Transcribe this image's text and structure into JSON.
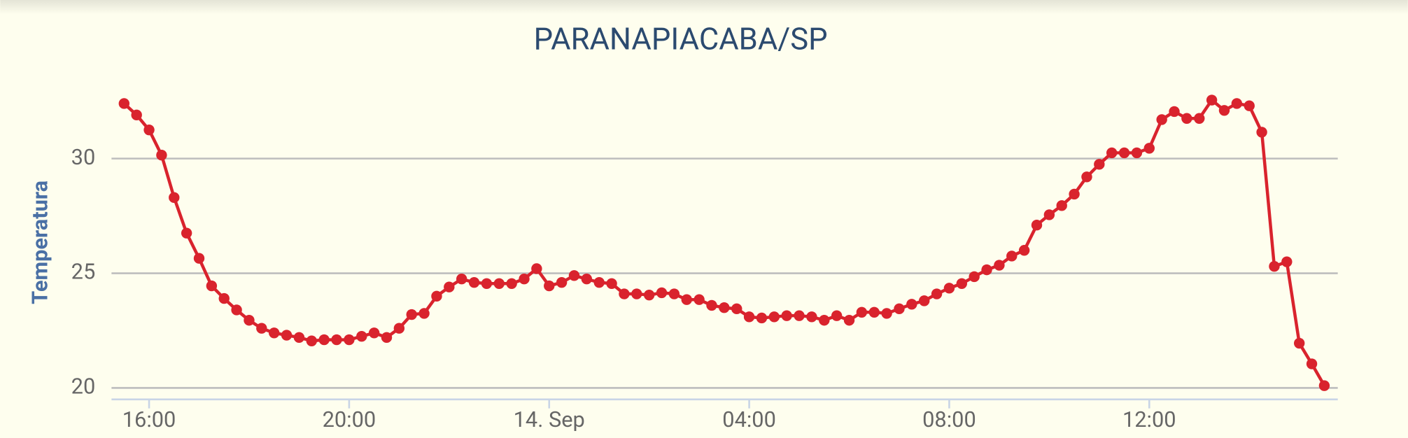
{
  "chart_data": {
    "type": "line",
    "title": "PARANAPIACABA/SP",
    "y_label": "Temperatura",
    "x": [
      "15:30",
      "15:45",
      "16:00",
      "16:15",
      "16:30",
      "16:45",
      "17:00",
      "17:15",
      "17:30",
      "17:45",
      "18:00",
      "18:15",
      "18:30",
      "18:45",
      "19:00",
      "19:15",
      "19:30",
      "19:45",
      "20:00",
      "20:15",
      "20:30",
      "20:45",
      "21:00",
      "21:15",
      "21:30",
      "21:45",
      "22:00",
      "22:15",
      "22:30",
      "22:45",
      "23:00",
      "23:15",
      "23:30",
      "23:45",
      "00:00",
      "00:15",
      "00:30",
      "00:45",
      "01:00",
      "01:15",
      "01:30",
      "01:45",
      "02:00",
      "02:15",
      "02:30",
      "02:45",
      "03:00",
      "03:15",
      "03:30",
      "03:45",
      "04:00",
      "04:15",
      "04:30",
      "04:45",
      "05:00",
      "05:15",
      "05:30",
      "05:45",
      "06:00",
      "06:15",
      "06:30",
      "06:45",
      "07:00",
      "07:15",
      "07:30",
      "07:45",
      "08:00",
      "08:15",
      "08:30",
      "08:45",
      "09:00",
      "09:15",
      "09:30",
      "09:45",
      "10:00",
      "10:15",
      "10:30",
      "10:45",
      "11:00",
      "11:15",
      "11:30",
      "11:45",
      "12:00",
      "12:15",
      "12:30",
      "12:45",
      "13:00",
      "13:15",
      "13:30",
      "13:45",
      "14:00",
      "14:15",
      "14:30",
      "14:45",
      "15:00",
      "15:15",
      "15:30"
    ],
    "series": [
      {
        "name": "Temperatura",
        "color": "#d9232d",
        "values": [
          32.4,
          31.9,
          31.25,
          30.15,
          28.3,
          26.75,
          25.65,
          24.45,
          23.9,
          23.4,
          22.95,
          22.6,
          22.4,
          22.3,
          22.2,
          22.05,
          22.1,
          22.1,
          22.1,
          22.25,
          22.4,
          22.2,
          22.6,
          23.2,
          23.25,
          24.0,
          24.4,
          24.75,
          24.6,
          24.55,
          24.55,
          24.55,
          24.75,
          25.2,
          24.45,
          24.6,
          24.9,
          24.75,
          24.6,
          24.55,
          24.1,
          24.1,
          24.05,
          24.15,
          24.1,
          23.85,
          23.85,
          23.6,
          23.5,
          23.45,
          23.1,
          23.05,
          23.1,
          23.15,
          23.15,
          23.1,
          22.95,
          23.15,
          22.95,
          23.3,
          23.3,
          23.25,
          23.45,
          23.65,
          23.8,
          24.1,
          24.35,
          24.55,
          24.85,
          25.15,
          25.35,
          25.75,
          26.0,
          27.1,
          27.55,
          27.95,
          28.45,
          29.2,
          29.75,
          30.25,
          30.25,
          30.25,
          30.45,
          31.7,
          32.05,
          31.75,
          31.75,
          32.55,
          32.1,
          32.4,
          32.3,
          31.15,
          25.3,
          25.5,
          21.95,
          21.05,
          20.1
        ]
      }
    ],
    "xticks": [
      "16:00",
      "20:00",
      {
        "value": "00:00",
        "label": "14. Sep"
      },
      "04:00",
      "08:00",
      "12:00"
    ],
    "ylim": [
      19.5,
      33
    ],
    "yticks": [
      20,
      25,
      30
    ],
    "grid": true
  }
}
